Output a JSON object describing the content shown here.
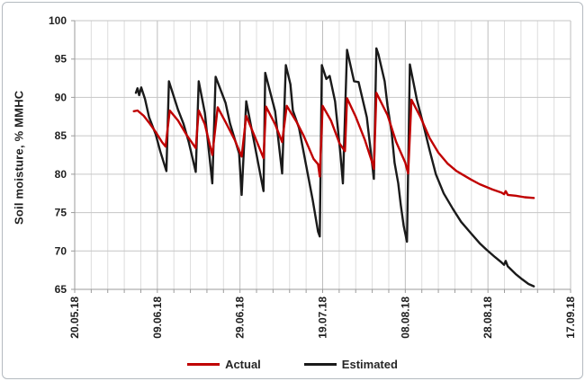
{
  "chart_data": {
    "type": "line",
    "title": "",
    "ylabel": "Soil moisture, % MMHC",
    "xlabel": "",
    "y_axis": {
      "min": 65,
      "max": 100,
      "tick_step": 5,
      "tick_labels": [
        "65",
        "70",
        "75",
        "80",
        "85",
        "90",
        "95",
        "100"
      ]
    },
    "x_axis": {
      "tick_labels": [
        "20.05.18",
        "09.06.18",
        "29.06.18",
        "19.07.18",
        "08.08.18",
        "28.08.18",
        "17.09.18"
      ],
      "tick_days": [
        0,
        20,
        40,
        60,
        80,
        100,
        120
      ],
      "range_days": [
        0,
        120
      ],
      "major_step_days": 20,
      "minor_step_days": 4
    },
    "grid": {
      "horizontal": true,
      "vertical_minor": true,
      "vertical_major": true
    },
    "legend_position": "bottom-center",
    "colors": {
      "actual": "#c00000",
      "estimated": "#1a1a1a",
      "grid_minor": "#dddddd",
      "grid_major": "#bdbdbd",
      "grid_horizontal": "#c6c6c6",
      "axis": "#9b9b9b",
      "tick_text": "#1f1f1f"
    },
    "series": [
      {
        "name": "Actual",
        "color": "#c00000",
        "points": [
          [
            14.3,
            88.2
          ],
          [
            15.2,
            88.3
          ],
          [
            16.7,
            87.6
          ],
          [
            18.0,
            86.7
          ],
          [
            19.6,
            85.5
          ],
          [
            21.1,
            84.2
          ],
          [
            22.0,
            83.6
          ],
          [
            23.0,
            88.3
          ],
          [
            25.0,
            87.0
          ],
          [
            27.2,
            85.0
          ],
          [
            29.3,
            83.4
          ],
          [
            30.0,
            88.3
          ],
          [
            31.5,
            86.5
          ],
          [
            33.3,
            82.5
          ],
          [
            34.6,
            88.7
          ],
          [
            36.5,
            86.8
          ],
          [
            38.7,
            84.5
          ],
          [
            39.8,
            83.1
          ],
          [
            40.4,
            82.3
          ],
          [
            41.5,
            87.6
          ],
          [
            43.5,
            85.0
          ],
          [
            45.7,
            82.1
          ],
          [
            46.3,
            88.8
          ],
          [
            48.5,
            86.5
          ],
          [
            50.2,
            84.2
          ],
          [
            51.3,
            88.9
          ],
          [
            53.7,
            86.8
          ],
          [
            55.4,
            85.0
          ],
          [
            57.8,
            82.0
          ],
          [
            58.9,
            81.3
          ],
          [
            59.3,
            79.7
          ],
          [
            60.0,
            88.9
          ],
          [
            62.0,
            87.0
          ],
          [
            64.1,
            84.0
          ],
          [
            65.4,
            83.0
          ],
          [
            65.9,
            89.9
          ],
          [
            68.0,
            87.5
          ],
          [
            70.2,
            84.5
          ],
          [
            72.0,
            81.5
          ],
          [
            72.4,
            80.7
          ],
          [
            73.0,
            90.6
          ],
          [
            75.7,
            87.7
          ],
          [
            77.8,
            84.2
          ],
          [
            80.0,
            81.5
          ],
          [
            80.7,
            80.1
          ],
          [
            81.5,
            89.7
          ],
          [
            83.7,
            87.4
          ],
          [
            85.9,
            84.7
          ],
          [
            88.0,
            82.8
          ],
          [
            90.2,
            81.4
          ],
          [
            92.4,
            80.4
          ],
          [
            95.9,
            79.3
          ],
          [
            98.0,
            78.7
          ],
          [
            101.1,
            78.0
          ],
          [
            103.3,
            77.6
          ],
          [
            103.9,
            77.4
          ],
          [
            104.3,
            77.8
          ],
          [
            104.8,
            77.3
          ],
          [
            106.7,
            77.2
          ],
          [
            108.9,
            77.0
          ],
          [
            111.1,
            76.9
          ]
        ]
      },
      {
        "name": "Estimated",
        "color": "#1a1a1a",
        "points": [
          [
            14.8,
            90.6
          ],
          [
            15.2,
            91.2
          ],
          [
            15.6,
            90.3
          ],
          [
            16.1,
            91.3
          ],
          [
            17.0,
            89.8
          ],
          [
            18.0,
            87.4
          ],
          [
            19.6,
            85.2
          ],
          [
            20.7,
            83.0
          ],
          [
            22.2,
            80.4
          ],
          [
            22.8,
            92.1
          ],
          [
            25.0,
            88.4
          ],
          [
            26.3,
            86.6
          ],
          [
            27.6,
            84.2
          ],
          [
            29.3,
            80.3
          ],
          [
            30.0,
            92.1
          ],
          [
            31.5,
            88.0
          ],
          [
            33.3,
            78.8
          ],
          [
            34.1,
            92.7
          ],
          [
            36.5,
            89.3
          ],
          [
            37.6,
            86.6
          ],
          [
            39.8,
            82.7
          ],
          [
            40.4,
            77.3
          ],
          [
            41.5,
            89.5
          ],
          [
            43.5,
            84.0
          ],
          [
            45.7,
            77.8
          ],
          [
            46.1,
            93.2
          ],
          [
            48.5,
            88.2
          ],
          [
            50.2,
            80.1
          ],
          [
            51.1,
            94.2
          ],
          [
            52.2,
            91.7
          ],
          [
            52.8,
            88.3
          ],
          [
            54.3,
            86.0
          ],
          [
            57.6,
            76.6
          ],
          [
            58.9,
            72.5
          ],
          [
            59.3,
            71.9
          ],
          [
            59.8,
            94.2
          ],
          [
            60.9,
            92.4
          ],
          [
            61.7,
            92.8
          ],
          [
            63.0,
            89.5
          ],
          [
            64.3,
            82.7
          ],
          [
            64.9,
            78.8
          ],
          [
            65.9,
            96.2
          ],
          [
            67.6,
            92.1
          ],
          [
            68.7,
            92.0
          ],
          [
            70.7,
            87.4
          ],
          [
            72.4,
            79.4
          ],
          [
            73.0,
            96.4
          ],
          [
            73.5,
            95.6
          ],
          [
            75.0,
            92.1
          ],
          [
            75.7,
            88.9
          ],
          [
            76.7,
            85.4
          ],
          [
            77.4,
            81.5
          ],
          [
            78.3,
            78.8
          ],
          [
            78.9,
            76.0
          ],
          [
            79.6,
            73.3
          ],
          [
            80.4,
            71.2
          ],
          [
            81.1,
            94.3
          ],
          [
            82.8,
            89.7
          ],
          [
            84.3,
            86.6
          ],
          [
            85.9,
            83.1
          ],
          [
            87.4,
            80.0
          ],
          [
            89.3,
            77.5
          ],
          [
            91.5,
            75.5
          ],
          [
            93.5,
            73.8
          ],
          [
            95.9,
            72.3
          ],
          [
            98.0,
            71.0
          ],
          [
            99.6,
            70.2
          ],
          [
            101.7,
            69.2
          ],
          [
            103.3,
            68.5
          ],
          [
            103.9,
            68.2
          ],
          [
            104.3,
            68.7
          ],
          [
            104.8,
            68.0
          ],
          [
            106.7,
            67.0
          ],
          [
            108.3,
            66.3
          ],
          [
            109.8,
            65.7
          ],
          [
            111.1,
            65.4
          ]
        ]
      }
    ]
  }
}
